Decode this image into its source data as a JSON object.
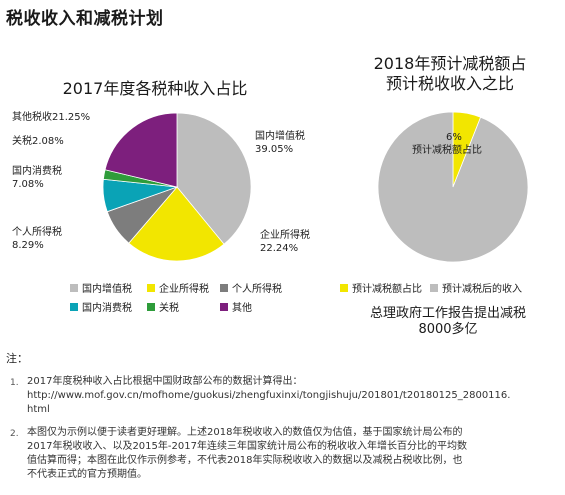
{
  "page_title": "税收收入和减税计划",
  "chart_data": [
    {
      "type": "pie",
      "title": "2017年度各税种收入占比",
      "slices": [
        {
          "name": "国内增值税",
          "value": 39.05,
          "label_pct": "39.05%",
          "color": "#bdbdbd"
        },
        {
          "name": "企业所得税",
          "value": 22.24,
          "label_pct": "22.24%",
          "color": "#f2e600"
        },
        {
          "name": "个人所得税",
          "value": 8.29,
          "label_pct": "8.29%",
          "color": "#7d7d7d"
        },
        {
          "name": "国内消费税",
          "value": 7.08,
          "label_pct": "7.08%",
          "color": "#0aa3b6"
        },
        {
          "name": "关税",
          "value": 2.08,
          "label_pct": "2.08%",
          "color": "#2e9c3a"
        },
        {
          "name": "其他税收",
          "value": 21.25,
          "label_pct": "21.25%",
          "color": "#7d1f7d"
        }
      ],
      "legend": [
        "国内增值税",
        "企业所得税",
        "个人所得税",
        "国内消费税",
        "关税",
        "其他"
      ]
    },
    {
      "type": "pie",
      "title_line1": "2018年预计减税额占",
      "title_line2": "预计税收收入之比",
      "slices": [
        {
          "name": "预计减税额占比",
          "value": 6,
          "label_pct": "6%",
          "color": "#f2e600"
        },
        {
          "name": "预计减税后的收入",
          "value": 94,
          "color": "#bdbdbd"
        }
      ],
      "inner_label_pct": "6%",
      "inner_label_name": "预计减税额占比",
      "legend": [
        "预计减税额占比",
        "预计减税后的收入"
      ]
    }
  ],
  "report": {
    "line1": "总理政府工作报告提出减税",
    "line2": "8000多亿"
  },
  "notes": {
    "heading": "注：",
    "items": [
      {
        "num": "1.",
        "text": "2017年度税种收入占比根据中国财政部公布的数据计算得出：",
        "text2": "http://www.mof.gov.cn/mofhome/guokusi/zhengfuxinxi/tongjishuju/201801/t20180125_2800116.",
        "text3": "html"
      },
      {
        "num": "2.",
        "text": "本图仅为示例以便于读者更好理解。上述2018年税收收入的数值仅为估值，基于国家统计局公布的",
        "text2": "2017年税收收入、以及2015年-2017年连续三年国家统计局公布的税收收入年增长百分比的平均数",
        "text3": "值估算而得；本图在此仅作示例参考，不代表2018年实际税收收入的数据以及减税占税收比例，也",
        "text4": "不代表正式的官方预期值。"
      }
    ]
  }
}
